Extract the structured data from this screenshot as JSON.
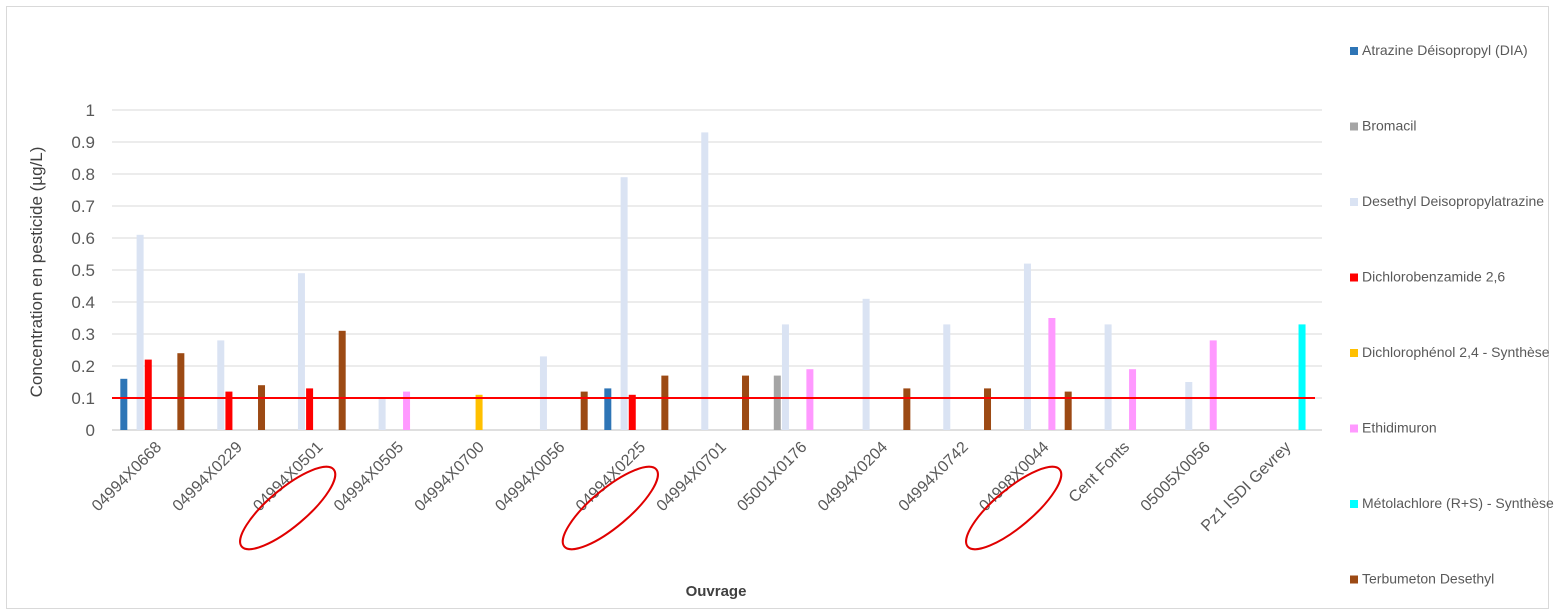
{
  "chart_data": {
    "type": "bar",
    "xlabel": "Ouvrage",
    "ylabel": "Concentration en pesticide (µg/L)",
    "ylim": [
      0,
      1
    ],
    "yticks": [
      "0",
      "0.1",
      "0.2",
      "0.3",
      "0.4",
      "0.5",
      "0.6",
      "0.7",
      "0.8",
      "0.9",
      "1"
    ],
    "grid": true,
    "legend_position": "right",
    "categories": [
      "04994X0668",
      "04994X0229",
      "04994X0501",
      "04994X0505",
      "04994X0700",
      "04994X0056",
      "04994X0225",
      "04994X0701",
      "05001X0176",
      "04994X0204",
      "04994X0742",
      "04998X0044",
      "Cent Fonts",
      "05005X0056",
      "Pz1 ISDI Gevrey"
    ],
    "circled_categories": [
      "04994X0501",
      "04994X0225",
      "04998X0044"
    ],
    "threshold": {
      "value": 0.1,
      "color": "#ff0000"
    },
    "series": [
      {
        "name": "Atrazine Déisopropyl (DIA)",
        "color": "#2e75b6",
        "values": [
          0.16,
          null,
          null,
          null,
          null,
          null,
          0.13,
          null,
          null,
          null,
          null,
          null,
          null,
          null,
          null
        ]
      },
      {
        "name": "Bromacil",
        "color": "#a5a5a5",
        "values": [
          null,
          null,
          null,
          null,
          null,
          null,
          null,
          null,
          0.17,
          null,
          null,
          null,
          null,
          null,
          null
        ]
      },
      {
        "name": "Desethyl Deisopropylatrazine",
        "color": "#dae3f3",
        "values": [
          0.61,
          0.28,
          0.49,
          0.1,
          null,
          0.23,
          0.79,
          0.93,
          0.33,
          0.41,
          0.33,
          0.52,
          0.33,
          0.15,
          null
        ]
      },
      {
        "name": "Dichlorobenzamide 2,6",
        "color": "#ff0000",
        "values": [
          0.22,
          0.12,
          0.13,
          null,
          null,
          null,
          0.11,
          null,
          null,
          null,
          null,
          null,
          null,
          null,
          null
        ]
      },
      {
        "name": "Dichlorophénol 2,4 - Synthèse",
        "color": "#ffc000",
        "values": [
          null,
          null,
          null,
          null,
          0.11,
          null,
          null,
          null,
          null,
          null,
          null,
          null,
          null,
          null,
          null
        ]
      },
      {
        "name": "Ethidimuron",
        "color": "#ff99ff",
        "values": [
          null,
          null,
          null,
          0.12,
          null,
          null,
          null,
          null,
          0.19,
          null,
          null,
          0.35,
          0.19,
          0.28,
          null
        ]
      },
      {
        "name": "Métolachlore (R+S) - Synthèse",
        "color": "#00ffff",
        "values": [
          null,
          null,
          null,
          null,
          null,
          null,
          null,
          null,
          null,
          null,
          null,
          null,
          null,
          null,
          0.33
        ]
      },
      {
        "name": "Terbumeton Desethyl",
        "color": "#9c4a14",
        "values": [
          0.24,
          0.14,
          0.31,
          null,
          null,
          0.12,
          0.17,
          0.17,
          null,
          0.13,
          0.13,
          0.12,
          null,
          null,
          null
        ]
      }
    ]
  }
}
